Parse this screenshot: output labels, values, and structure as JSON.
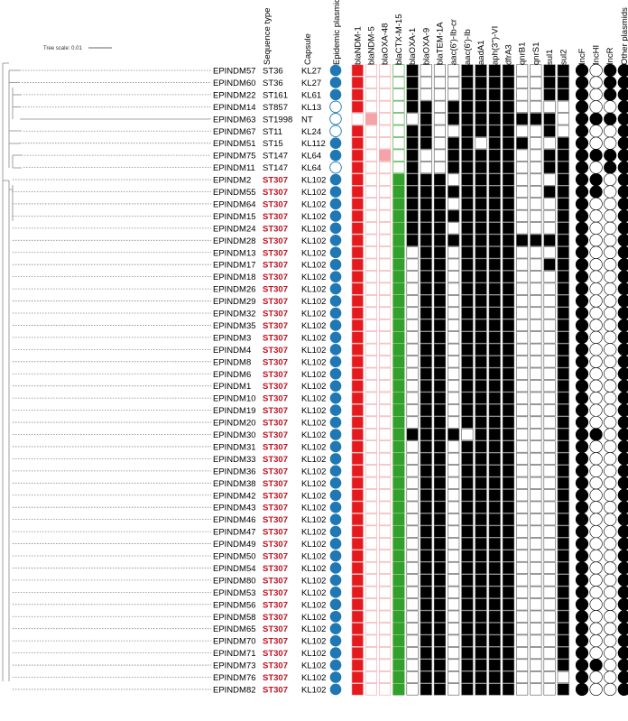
{
  "tree_scale_label": "Tree scale: 0.01",
  "headers": {
    "sequence_type": "Sequence type",
    "capsule": "Capsule",
    "epidemic_plasmid": "Epidemic plasmid",
    "genes": [
      "blaNDM-1",
      "blaNDM-5",
      "blaOXA-48",
      "blaCTX-M-15",
      "blaOXA-1",
      "blaOXA-9",
      "blaTEM-1A",
      "aac(6')-Ib-cr",
      "aac(6')-Ib",
      "aadA1",
      "aph(3'')-VI",
      "dfrA3",
      "qnrB1",
      "qnrS1",
      "sul1",
      "sul2"
    ],
    "plasmids": [
      "IncF",
      "IncHI",
      "IncR",
      "Other plasmids"
    ]
  },
  "colors": {
    "st307": "#c0101f",
    "epidemic_plasmid": "#1f78b4",
    "ndm1": "#e41a1c",
    "ndm5": "#f4a3a8",
    "oxa48": "#f4a3a8",
    "ctxm15": "#33a02c",
    "present": "#000000",
    "absent_outline": "#999999"
  },
  "rows": [
    {
      "id": "EPINDM57",
      "st": "ST36",
      "kl": "KL27",
      "ep": 1,
      "g": "1000100011110011",
      "p": "1011"
    },
    {
      "id": "EPINDM60",
      "st": "ST36",
      "kl": "KL27",
      "ep": 1,
      "g": "1000100011110011",
      "p": "1011"
    },
    {
      "id": "EPINDM22",
      "st": "ST161",
      "kl": "KL61",
      "ep": 1,
      "g": "1000100011110011",
      "p": "1011"
    },
    {
      "id": "EPINDM14",
      "st": "ST857",
      "kl": "KL13",
      "ep": 0,
      "g": "1000110111110000",
      "p": "1001"
    },
    {
      "id": "EPINDM63",
      "st": "ST1998",
      "kl": "NT",
      "ep": 0,
      "g": "0100010111111110",
      "p": "1111"
    },
    {
      "id": "EPINDM67",
      "st": "ST11",
      "kl": "KL24",
      "ep": 0,
      "g": "1000110011110010",
      "p": "1001"
    },
    {
      "id": "EPINDM51",
      "st": "ST15",
      "kl": "KL112",
      "ep": 1,
      "g": "1000110110111001",
      "p": "1001"
    },
    {
      "id": "EPINDM75",
      "st": "ST147",
      "kl": "KL64",
      "ep": 1,
      "g": "1010100111110011",
      "p": "1111"
    },
    {
      "id": "EPINDM11",
      "st": "ST147",
      "kl": "KL64",
      "ep": 0,
      "g": "1000100111110011",
      "p": "1011"
    },
    {
      "id": "EPINDM2",
      "st": "ST307",
      "kl": "KL102",
      "ep": 1,
      "g": "1001111011110001",
      "p": "1101"
    },
    {
      "id": "EPINDM55",
      "st": "ST307",
      "kl": "KL102",
      "ep": 1,
      "g": "1001111111110011",
      "p": "1101"
    },
    {
      "id": "EPINDM64",
      "st": "ST307",
      "kl": "KL102",
      "ep": 1,
      "g": "1001111011110001",
      "p": "1001"
    },
    {
      "id": "EPINDM15",
      "st": "ST307",
      "kl": "KL102",
      "ep": 1,
      "g": "1001111111110001",
      "p": "1001"
    },
    {
      "id": "EPINDM24",
      "st": "ST307",
      "kl": "KL102",
      "ep": 1,
      "g": "1001111011110001",
      "p": "1001"
    },
    {
      "id": "EPINDM28",
      "st": "ST307",
      "kl": "KL102",
      "ep": 1,
      "g": "1001111111111111",
      "p": "1001"
    },
    {
      "id": "EPINDM13",
      "st": "ST307",
      "kl": "KL102",
      "ep": 1,
      "g": "1001011011110001",
      "p": "1001"
    },
    {
      "id": "EPINDM17",
      "st": "ST307",
      "kl": "KL102",
      "ep": 1,
      "g": "1001011011110011",
      "p": "1001"
    },
    {
      "id": "EPINDM18",
      "st": "ST307",
      "kl": "KL102",
      "ep": 1,
      "g": "1001011011110001",
      "p": "1001"
    },
    {
      "id": "EPINDM26",
      "st": "ST307",
      "kl": "KL102",
      "ep": 1,
      "g": "1001011011110001",
      "p": "1001"
    },
    {
      "id": "EPINDM29",
      "st": "ST307",
      "kl": "KL102",
      "ep": 1,
      "g": "1001011011110001",
      "p": "1001"
    },
    {
      "id": "EPINDM32",
      "st": "ST307",
      "kl": "KL102",
      "ep": 1,
      "g": "1001011011110001",
      "p": "1001"
    },
    {
      "id": "EPINDM35",
      "st": "ST307",
      "kl": "KL102",
      "ep": 1,
      "g": "1001011011110001",
      "p": "1001"
    },
    {
      "id": "EPINDM3",
      "st": "ST307",
      "kl": "KL102",
      "ep": 1,
      "g": "1001011011110001",
      "p": "1001"
    },
    {
      "id": "EPINDM4",
      "st": "ST307",
      "kl": "KL102",
      "ep": 1,
      "g": "1001011011110001",
      "p": "1001"
    },
    {
      "id": "EPINDM8",
      "st": "ST307",
      "kl": "KL102",
      "ep": 1,
      "g": "1001011011110001",
      "p": "1001"
    },
    {
      "id": "EPINDM6",
      "st": "ST307",
      "kl": "KL102",
      "ep": 1,
      "g": "1001011011110001",
      "p": "1001"
    },
    {
      "id": "EPINDM1",
      "st": "ST307",
      "kl": "KL102",
      "ep": 1,
      "g": "1001011011110001",
      "p": "1001"
    },
    {
      "id": "EPINDM10",
      "st": "ST307",
      "kl": "KL102",
      "ep": 1,
      "g": "1001011011110001",
      "p": "1001"
    },
    {
      "id": "EPINDM19",
      "st": "ST307",
      "kl": "KL102",
      "ep": 1,
      "g": "1001011011110001",
      "p": "1001"
    },
    {
      "id": "EPINDM20",
      "st": "ST307",
      "kl": "KL102",
      "ep": 1,
      "g": "1001011011110001",
      "p": "1001"
    },
    {
      "id": "EPINDM30",
      "st": "ST307",
      "kl": "KL102",
      "ep": 1,
      "g": "1001111101110001",
      "p": "1101"
    },
    {
      "id": "EPINDM31",
      "st": "ST307",
      "kl": "KL102",
      "ep": 1,
      "g": "1001011011110001",
      "p": "1001"
    },
    {
      "id": "EPINDM33",
      "st": "ST307",
      "kl": "KL102",
      "ep": 1,
      "g": "1001011011110001",
      "p": "1001"
    },
    {
      "id": "EPINDM36",
      "st": "ST307",
      "kl": "KL102",
      "ep": 1,
      "g": "1001011011110001",
      "p": "1001"
    },
    {
      "id": "EPINDM38",
      "st": "ST307",
      "kl": "KL102",
      "ep": 1,
      "g": "1001011011110001",
      "p": "1001"
    },
    {
      "id": "EPINDM42",
      "st": "ST307",
      "kl": "KL102",
      "ep": 1,
      "g": "1001011011110001",
      "p": "1001"
    },
    {
      "id": "EPINDM43",
      "st": "ST307",
      "kl": "KL102",
      "ep": 1,
      "g": "1001011011110001",
      "p": "1001"
    },
    {
      "id": "EPINDM46",
      "st": "ST307",
      "kl": "KL102",
      "ep": 1,
      "g": "1001011011110001",
      "p": "1001"
    },
    {
      "id": "EPINDM47",
      "st": "ST307",
      "kl": "KL102",
      "ep": 1,
      "g": "1001011011110001",
      "p": "1001"
    },
    {
      "id": "EPINDM49",
      "st": "ST307",
      "kl": "KL102",
      "ep": 1,
      "g": "1001011011110001",
      "p": "1001"
    },
    {
      "id": "EPINDM50",
      "st": "ST307",
      "kl": "KL102",
      "ep": 1,
      "g": "1001011011110001",
      "p": "1001"
    },
    {
      "id": "EPINDM54",
      "st": "ST307",
      "kl": "KL102",
      "ep": 1,
      "g": "1001011011110001",
      "p": "1001"
    },
    {
      "id": "EPINDM80",
      "st": "ST307",
      "kl": "KL102",
      "ep": 1,
      "g": "1001011011110001",
      "p": "1001"
    },
    {
      "id": "EPINDM53",
      "st": "ST307",
      "kl": "KL102",
      "ep": 1,
      "g": "1001011011110001",
      "p": "1001"
    },
    {
      "id": "EPINDM56",
      "st": "ST307",
      "kl": "KL102",
      "ep": 1,
      "g": "1001011011110001",
      "p": "1001"
    },
    {
      "id": "EPINDM58",
      "st": "ST307",
      "kl": "KL102",
      "ep": 1,
      "g": "1001011011110001",
      "p": "1001"
    },
    {
      "id": "EPINDM65",
      "st": "ST307",
      "kl": "KL102",
      "ep": 1,
      "g": "1001011011110001",
      "p": "1001"
    },
    {
      "id": "EPINDM70",
      "st": "ST307",
      "kl": "KL102",
      "ep": 1,
      "g": "1001011011110001",
      "p": "1001"
    },
    {
      "id": "EPINDM71",
      "st": "ST307",
      "kl": "KL102",
      "ep": 1,
      "g": "1001011011110001",
      "p": "1001"
    },
    {
      "id": "EPINDM73",
      "st": "ST307",
      "kl": "KL102",
      "ep": 1,
      "g": "1001011011110001",
      "p": "1101"
    },
    {
      "id": "EPINDM76",
      "st": "ST307",
      "kl": "KL102",
      "ep": 1,
      "g": "1001011011110000",
      "p": "1001"
    },
    {
      "id": "EPINDM82",
      "st": "ST307",
      "kl": "KL102",
      "ep": 1,
      "g": "1001011011110001",
      "p": "1001"
    }
  ]
}
